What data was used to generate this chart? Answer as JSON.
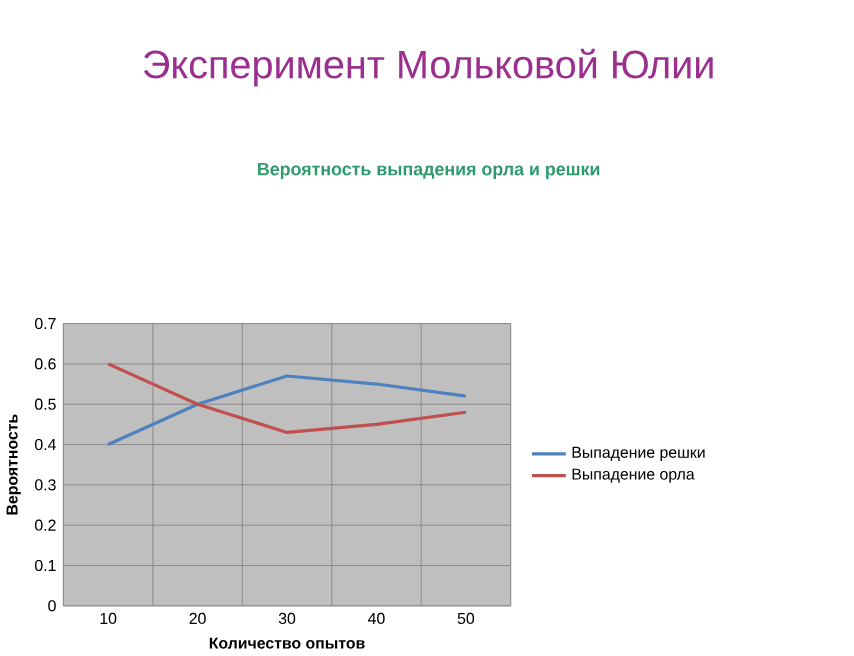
{
  "chart_data": {
    "type": "line",
    "title": "Эксперимент Мольковой Юлии",
    "subtitle": "Вероятность выпадения орла и решки",
    "xlabel": "Количество опытов",
    "ylabel": "Вероятность",
    "categories": [
      "10",
      "20",
      "30",
      "40",
      "50"
    ],
    "series": [
      {
        "name": "Выпадение решки",
        "color": "#4f81bd",
        "values": [
          0.4,
          0.5,
          0.57,
          0.55,
          0.52
        ]
      },
      {
        "name": "Выпадение орла",
        "color": "#c0504d",
        "values": [
          0.6,
          0.5,
          0.43,
          0.45,
          0.48
        ]
      }
    ],
    "ylim": [
      0,
      0.7
    ],
    "yticks": [
      0,
      0.1,
      0.2,
      0.3,
      0.4,
      0.5,
      0.6,
      0.7
    ],
    "grid": true,
    "legend": "right"
  }
}
